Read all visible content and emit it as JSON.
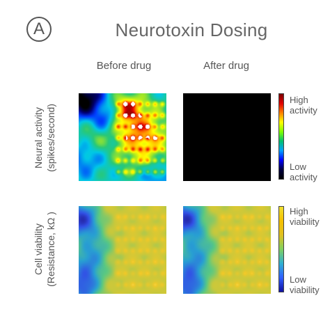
{
  "panel_label": "A",
  "chart_data": {
    "type": "heatmap",
    "title": "Neurotoxin Dosing",
    "columns": [
      "Before drug",
      "After drug"
    ],
    "rows": [
      {
        "label_line1": "Neural activity",
        "label_line2": "(spikes/second)",
        "colorbar_high_line1": "High",
        "colorbar_high_line2": "activity",
        "colorbar_low_line1": "Low",
        "colorbar_low_line2": "activity",
        "colormap": "jet",
        "before_active": true,
        "after_active": false
      },
      {
        "label_line1": "Cell viability",
        "label_line2": "(Resistance, kΩ )",
        "colorbar_high_line1": "High",
        "colorbar_high_line2": "viability",
        "colorbar_low_line1": "Low",
        "colorbar_low_line2": "viability",
        "colormap": "parula",
        "before_active": true,
        "after_active": true
      }
    ],
    "grid": "electrode array (7x7 spots)",
    "colors": {
      "after_activity_background": "#000000"
    }
  }
}
